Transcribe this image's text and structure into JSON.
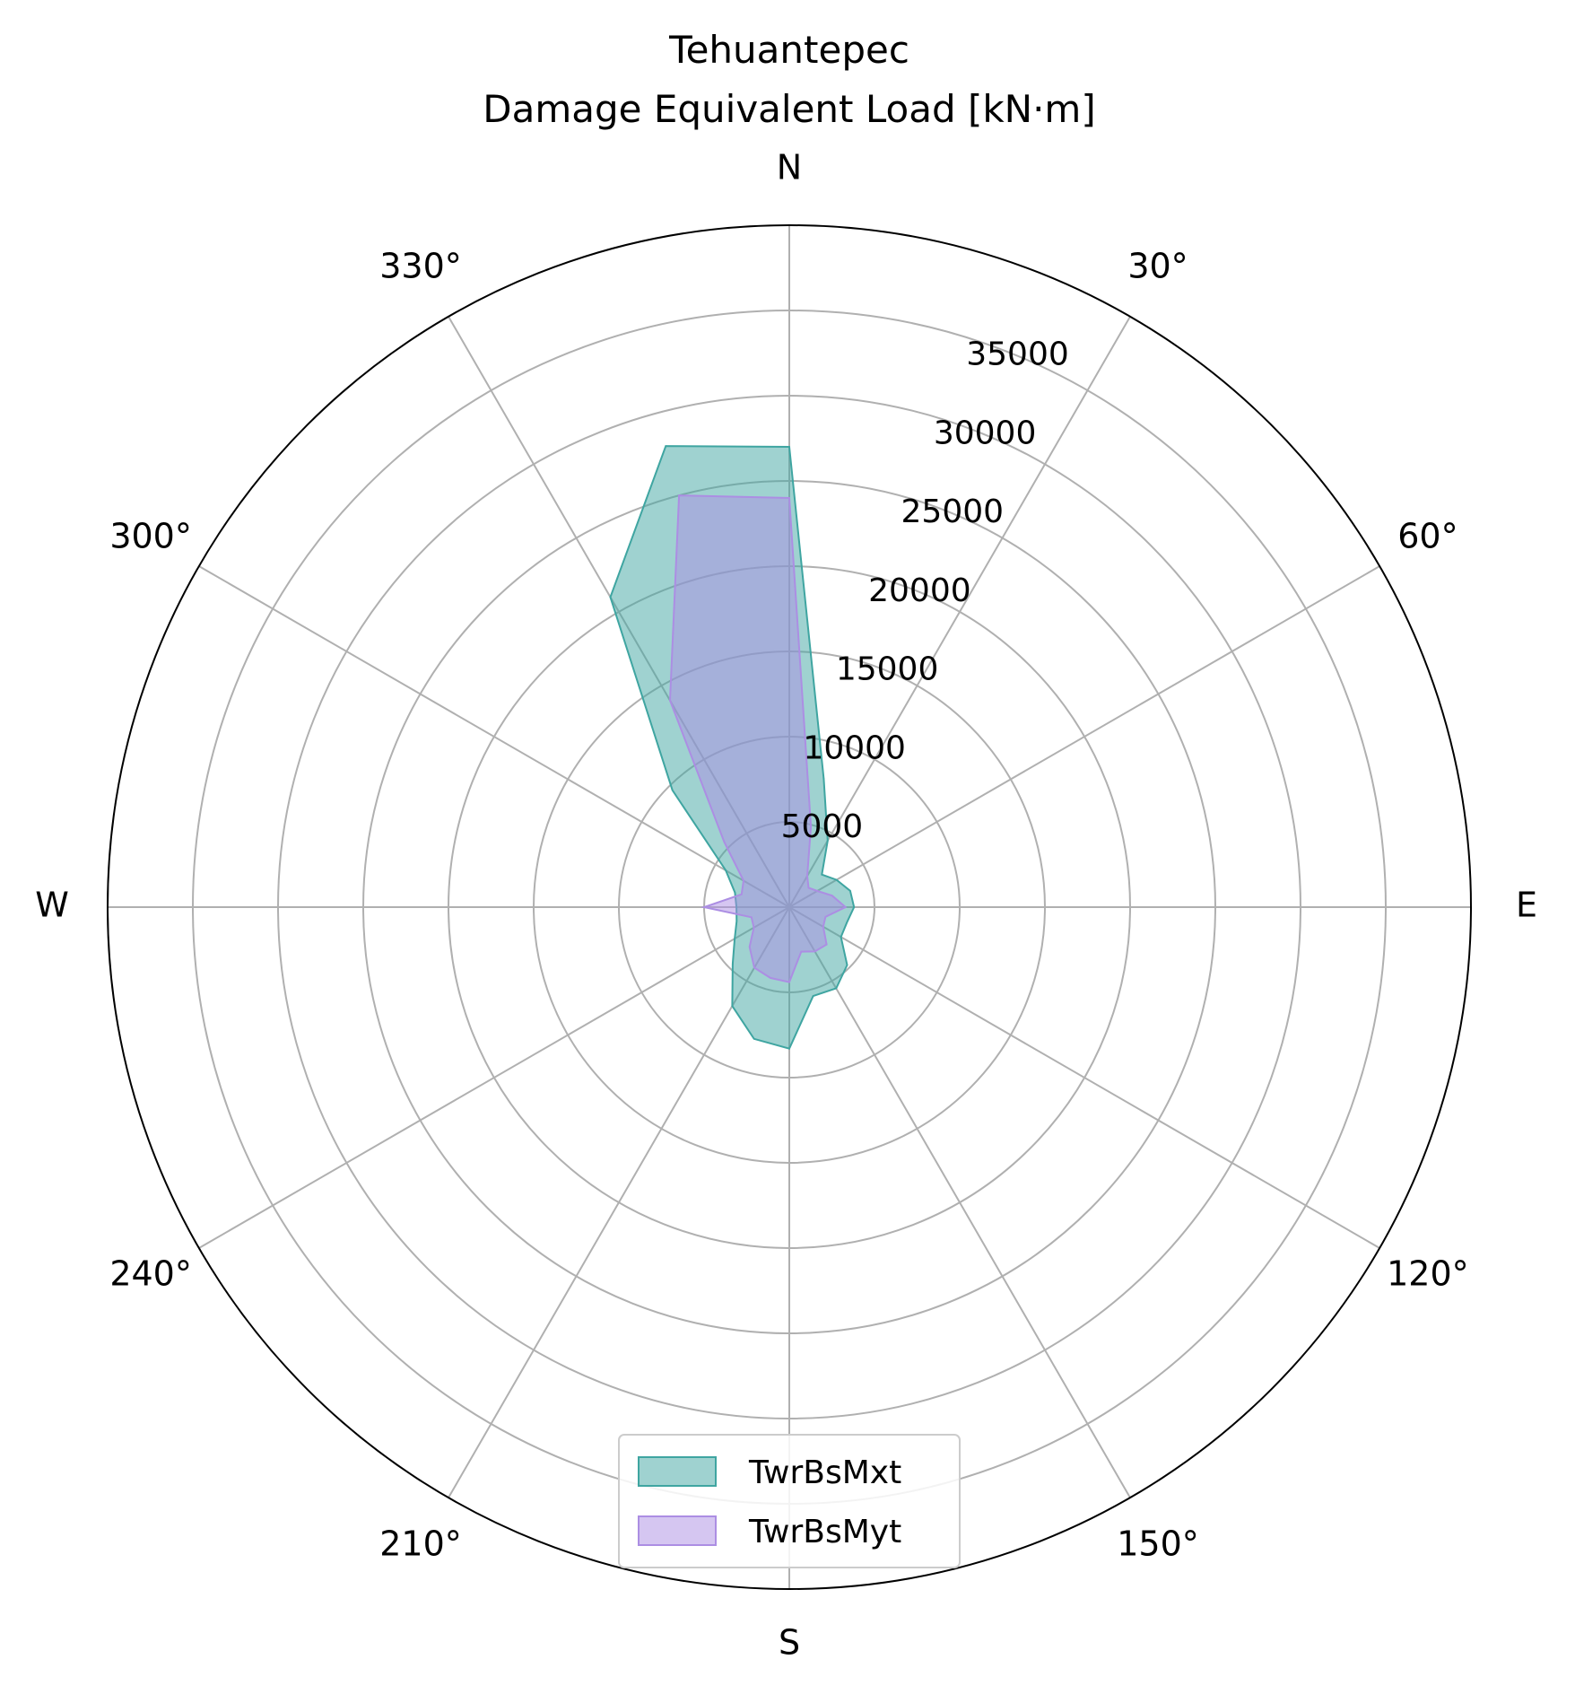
{
  "chart_data": {
    "type": "polar-area",
    "title": "Tehuantepec",
    "subtitle": "Damage Equivalent Load [kN·m]",
    "theta_zero": "N",
    "theta_direction": "clockwise",
    "theta_labels": [
      {
        "deg": 0,
        "label": "N"
      },
      {
        "deg": 30,
        "label": "30°"
      },
      {
        "deg": 60,
        "label": "60°"
      },
      {
        "deg": 90,
        "label": "E"
      },
      {
        "deg": 120,
        "label": "120°"
      },
      {
        "deg": 150,
        "label": "150°"
      },
      {
        "deg": 180,
        "label": "S"
      },
      {
        "deg": 210,
        "label": "210°"
      },
      {
        "deg": 240,
        "label": "240°"
      },
      {
        "deg": 270,
        "label": "W"
      },
      {
        "deg": 300,
        "label": "300°"
      },
      {
        "deg": 330,
        "label": "330°"
      }
    ],
    "r_ticks": [
      5000,
      10000,
      15000,
      20000,
      25000,
      30000,
      35000
    ],
    "r_tick_labels": [
      "5000",
      "10000",
      "15000",
      "20000",
      "25000",
      "30000",
      "35000"
    ],
    "rlim": [
      0,
      40000
    ],
    "grid": true,
    "legend_position": "lower center",
    "directions_deg": [
      0,
      15,
      30,
      45,
      60,
      75,
      90,
      105,
      120,
      135,
      150,
      165,
      180,
      195,
      210,
      225,
      240,
      255,
      270,
      285,
      300,
      315,
      330,
      345
    ],
    "series": [
      {
        "name": "TwrBsMxt",
        "color": "#3fa5a1",
        "fill_opacity": 0.5,
        "values": [
          27000,
          7800,
          4500,
          2700,
          3200,
          3700,
          3800,
          3500,
          3500,
          4800,
          5500,
          5400,
          8300,
          8000,
          6700,
          4700,
          3700,
          3200,
          3100,
          3300,
          4300,
          9700,
          21000,
          28000
        ]
      },
      {
        "name": "TwrBsMyt",
        "color": "#ac8ee3",
        "fill_opacity": 0.5,
        "values": [
          24000,
          4900,
          2100,
          1600,
          1900,
          2600,
          3300,
          2200,
          2300,
          3100,
          3000,
          2700,
          4400,
          4300,
          4100,
          3300,
          2400,
          2300,
          5000,
          2900,
          3100,
          5400,
          14000,
          25000
        ]
      }
    ]
  }
}
